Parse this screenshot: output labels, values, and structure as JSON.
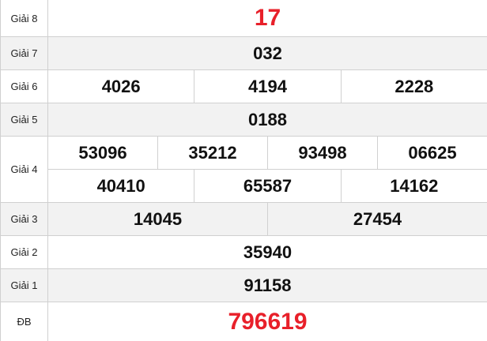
{
  "accent_color": "#e8202a",
  "prizes": [
    {
      "label": "Giải 8",
      "rows": [
        [
          "17"
        ]
      ],
      "highlight": true
    },
    {
      "label": "Giải 7",
      "rows": [
        [
          "032"
        ]
      ]
    },
    {
      "label": "Giải 6",
      "rows": [
        [
          "4026",
          "4194",
          "2228"
        ]
      ]
    },
    {
      "label": "Giải 5",
      "rows": [
        [
          "0188"
        ]
      ]
    },
    {
      "label": "Giải 4",
      "rows": [
        [
          "53096",
          "35212",
          "93498",
          "06625"
        ],
        [
          "40410",
          "65587",
          "14162"
        ]
      ]
    },
    {
      "label": "Giải 3",
      "rows": [
        [
          "14045",
          "27454"
        ]
      ]
    },
    {
      "label": "Giải 2",
      "rows": [
        [
          "35940"
        ]
      ]
    },
    {
      "label": "Giải 1",
      "rows": [
        [
          "91158"
        ]
      ]
    },
    {
      "label": "ĐB",
      "rows": [
        [
          "796619"
        ]
      ],
      "highlight": true
    }
  ]
}
